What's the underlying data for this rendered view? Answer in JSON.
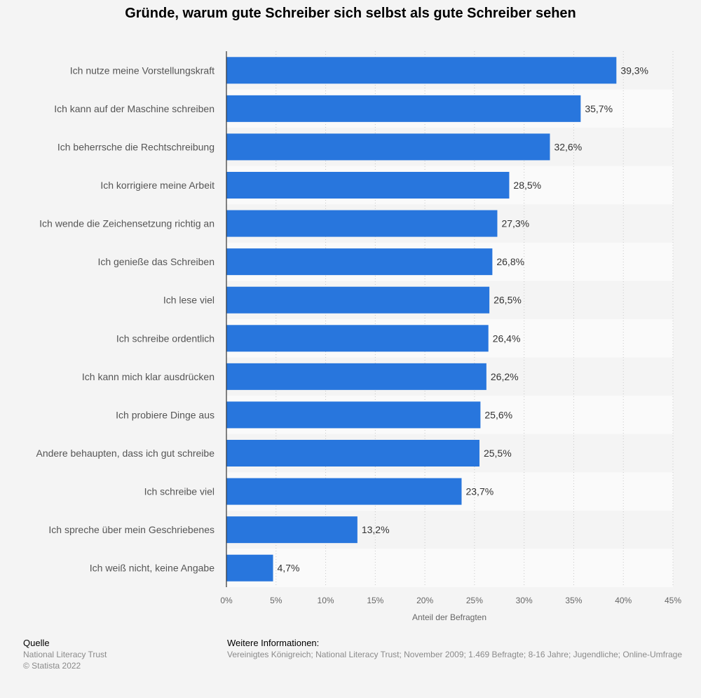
{
  "chart_data": {
    "type": "bar",
    "orientation": "horizontal",
    "title": "Gründe, warum gute Schreiber sich selbst als gute Schreiber sehen",
    "categories": [
      "Ich nutze meine Vorstellungskraft",
      "Ich kann auf der Maschine schreiben",
      "Ich beherrsche die Rechtschreibung",
      "Ich korrigiere meine Arbeit",
      "Ich wende die Zeichensetzung richtig an",
      "Ich genieße das Schreiben",
      "Ich lese viel",
      "Ich schreibe ordentlich",
      "Ich kann mich klar ausdrücken",
      "Ich probiere Dinge aus",
      "Andere behaupten, dass ich gut schreibe",
      "Ich schreibe viel",
      "Ich spreche über mein Geschriebenes",
      "Ich weiß nicht, keine Angabe"
    ],
    "values": [
      39.3,
      35.7,
      32.6,
      28.5,
      27.3,
      26.8,
      26.5,
      26.4,
      26.2,
      25.6,
      25.5,
      23.7,
      13.2,
      4.7
    ],
    "value_labels": [
      "39,3%",
      "35,7%",
      "32,6%",
      "28,5%",
      "27,3%",
      "26,8%",
      "26,5%",
      "26,4%",
      "26,2%",
      "25,6%",
      "25,5%",
      "23,7%",
      "13,2%",
      "4,7%"
    ],
    "xlabel": "Anteil der Befragten",
    "ylabel": "",
    "xlim": [
      0,
      45
    ],
    "x_ticks": [
      0,
      5,
      10,
      15,
      20,
      25,
      30,
      35,
      40,
      45
    ],
    "x_tick_labels": [
      "0%",
      "5%",
      "10%",
      "15%",
      "20%",
      "25%",
      "30%",
      "35%",
      "40%",
      "45%"
    ],
    "grid": true,
    "bar_color": "#2876dd",
    "stripe_color": "#fafafa",
    "background_color": "#f4f4f4"
  },
  "footer": {
    "source_heading": "Quelle",
    "source_lines": [
      "National Literacy Trust",
      "© Statista 2022"
    ],
    "info_heading": "Weitere Informationen:",
    "info_text": "Vereinigtes Königreich; National Literacy Trust; November 2009; 1.469 Befragte; 8-16 Jahre; Jugendliche; Online-Umfrage"
  }
}
